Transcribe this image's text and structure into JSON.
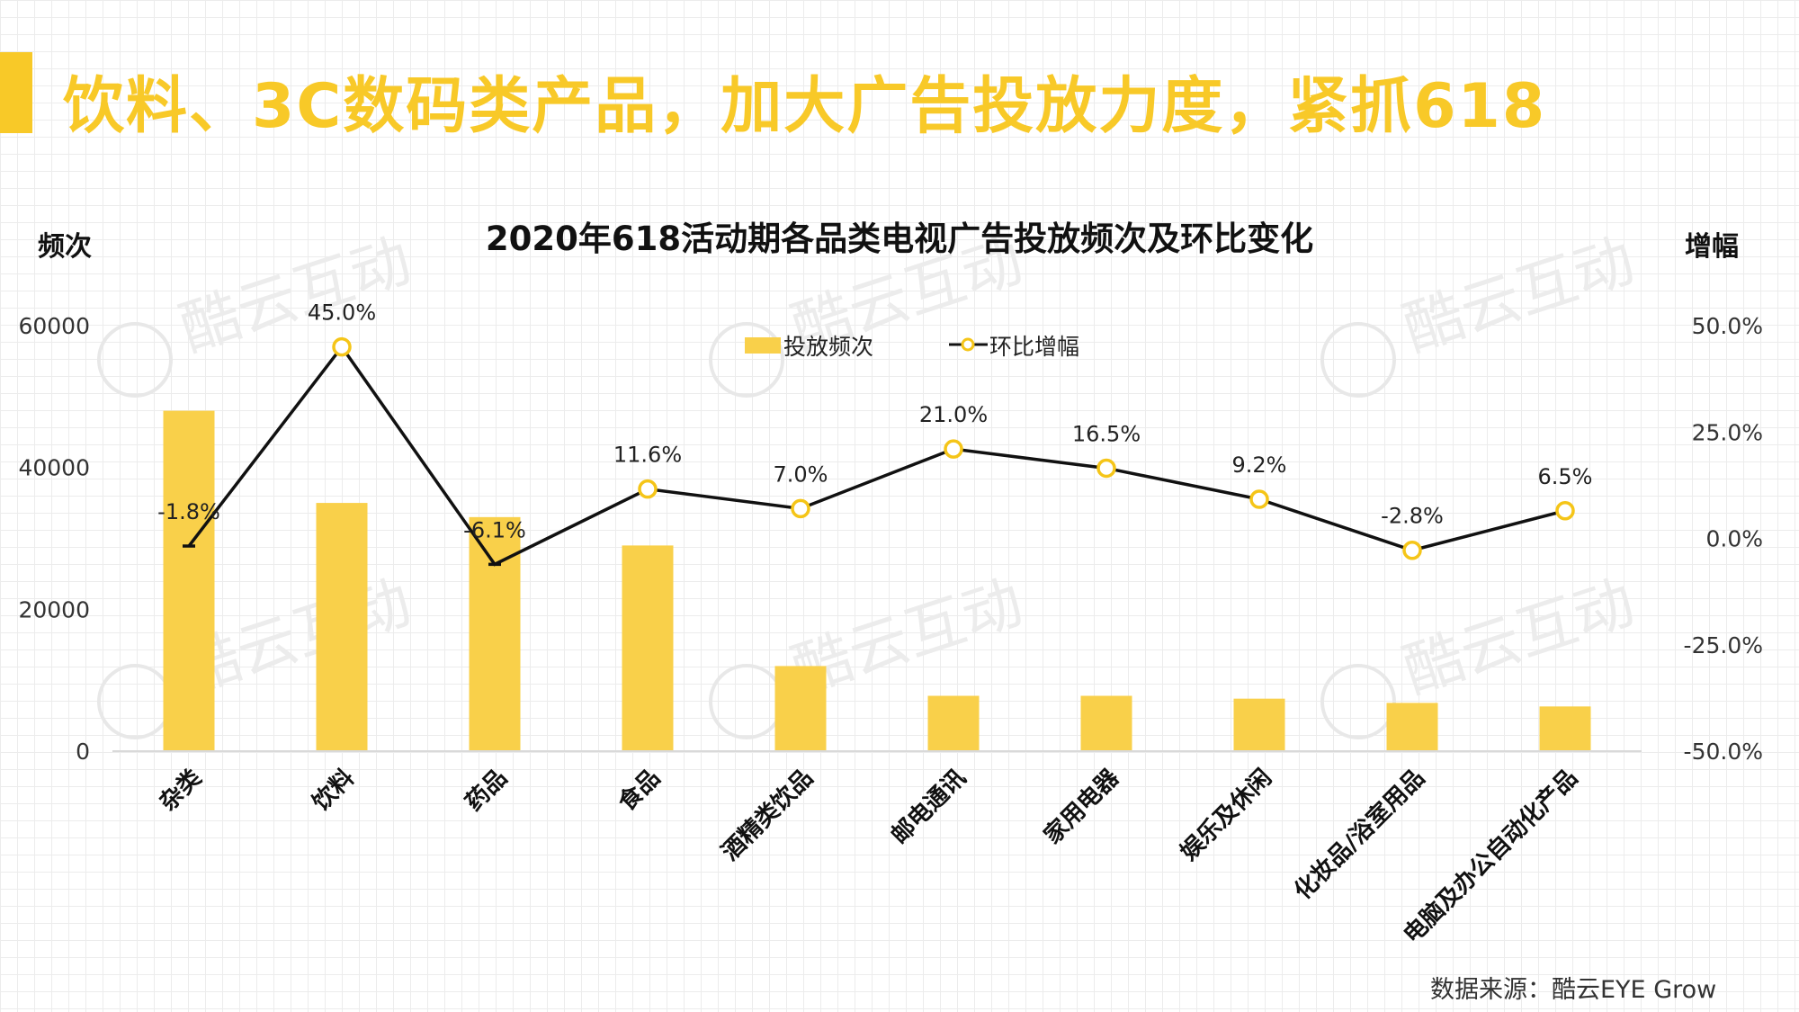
{
  "page": {
    "title": "饮料、3C数码类产品，加大广告投放力度，紧抓618",
    "source": "数据来源：酷云EYE Grow",
    "watermark": "酷云互动"
  },
  "chart_data": {
    "type": "bar",
    "title": "2020年618活动期各品类电视广告投放频次及环比变化",
    "ylabel": "频次",
    "y2label": "增幅",
    "categories": [
      "杂类",
      "饮料",
      "药品",
      "食品",
      "酒精类饮品",
      "邮电通讯",
      "家用电器",
      "娱乐及休闲",
      "化妆品/浴室用品",
      "电脑及办公自动化产品"
    ],
    "series": [
      {
        "name": "投放频次",
        "type": "bar",
        "axis": "left",
        "color": "#f9d04a",
        "values": [
          48000,
          35000,
          33000,
          29000,
          12000,
          7800,
          7800,
          7400,
          6800,
          6300
        ]
      },
      {
        "name": "环比增幅",
        "type": "line",
        "axis": "right",
        "color": "#111111",
        "marker_color": "#f5c518",
        "values": [
          -1.8,
          45.0,
          -6.1,
          11.6,
          7.0,
          21.0,
          16.5,
          9.2,
          -2.8,
          6.5
        ],
        "labels": [
          "-1.8%",
          "45.0%",
          "-6.1%",
          "11.6%",
          "7.0%",
          "21.0%",
          "16.5%",
          "9.2%",
          "-2.8%",
          "6.5%"
        ]
      }
    ],
    "ylim": [
      0,
      60000
    ],
    "y2lim": [
      -50,
      50
    ],
    "yticks": [
      "0",
      "20000",
      "40000",
      "60000"
    ],
    "y2ticks": [
      "-50.0%",
      "-25.0%",
      "0.0%",
      "25.0%",
      "50.0%"
    ],
    "legend_position": "top-center",
    "grid": false
  }
}
